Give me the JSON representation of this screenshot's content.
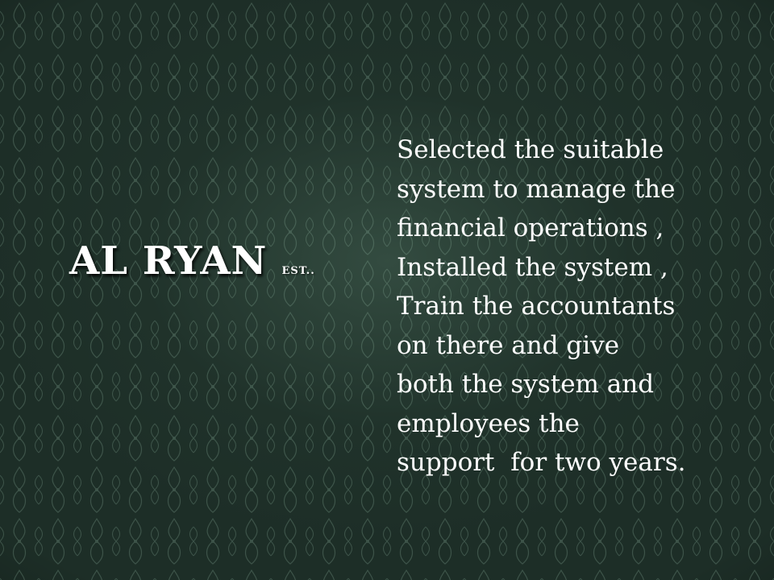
{
  "slide": {
    "title": "AL RYAN",
    "subtitle": "EST..",
    "body_lines": [
      "Selected the suitable",
      "system to manage the",
      "financial operations ,",
      "Installed the system ,",
      "Train the accountants",
      "on there and give",
      "both the system and",
      "employees the",
      "support  for two years."
    ]
  },
  "colors": {
    "background": "#1d2e27",
    "text": "#ffffff"
  }
}
